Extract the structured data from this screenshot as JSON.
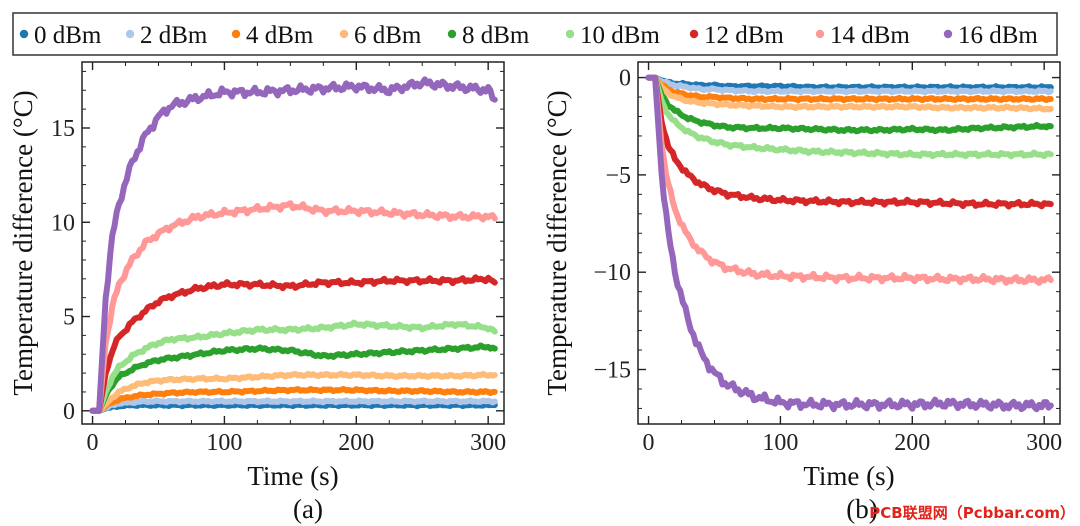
{
  "watermark": "PCB联盟网（Pcbbar.com）",
  "chart_data": [
    {
      "type": "line",
      "panel_label": "(a)",
      "title": "",
      "xlabel": "Time (s)",
      "ylabel": "Temperature difference (°C)",
      "xlim": [
        -8,
        312
      ],
      "ylim": [
        -0.7,
        18.5
      ],
      "xticks": [
        0,
        100,
        200,
        300
      ],
      "yticks": [
        0,
        5,
        10,
        15
      ],
      "x": [
        0,
        5,
        10,
        15,
        20,
        30,
        40,
        50,
        60,
        80,
        100,
        125,
        150,
        175,
        200,
        225,
        250,
        275,
        300,
        305
      ],
      "series": [
        {
          "name": "0 dBm",
          "color": "#1f77b4",
          "values": [
            0,
            0,
            0.12,
            0.2,
            0.25,
            0.3,
            0.3,
            0.3,
            0.3,
            0.3,
            0.3,
            0.3,
            0.3,
            0.3,
            0.3,
            0.3,
            0.3,
            0.3,
            0.3,
            0.3
          ]
        },
        {
          "name": "2 dBm",
          "color": "#aec7e8",
          "values": [
            0,
            0,
            0.15,
            0.3,
            0.4,
            0.45,
            0.5,
            0.5,
            0.5,
            0.5,
            0.5,
            0.5,
            0.5,
            0.5,
            0.5,
            0.5,
            0.5,
            0.5,
            0.5,
            0.5
          ]
        },
        {
          "name": "4 dBm",
          "color": "#ff7f0e",
          "values": [
            0,
            0,
            0.25,
            0.45,
            0.6,
            0.75,
            0.85,
            0.9,
            0.95,
            1.0,
            1.0,
            1.05,
            1.1,
            1.1,
            1.1,
            1.05,
            1.05,
            1.0,
            1.0,
            1.0
          ]
        },
        {
          "name": "6 dBm",
          "color": "#ffbb78",
          "values": [
            0,
            0,
            0.35,
            0.7,
            1.0,
            1.3,
            1.5,
            1.6,
            1.65,
            1.7,
            1.7,
            1.8,
            1.9,
            1.9,
            1.9,
            1.85,
            1.85,
            1.85,
            1.9,
            1.9
          ]
        },
        {
          "name": "8 dBm",
          "color": "#2ca02c",
          "values": [
            0,
            0,
            0.8,
            1.4,
            1.8,
            2.2,
            2.5,
            2.7,
            2.8,
            3.0,
            3.2,
            3.3,
            3.2,
            2.9,
            3.0,
            3.1,
            3.2,
            3.3,
            3.4,
            3.3
          ]
        },
        {
          "name": "10 dBm",
          "color": "#98df8a",
          "values": [
            0,
            0,
            1.0,
            1.8,
            2.3,
            2.9,
            3.3,
            3.6,
            3.8,
            3.9,
            4.1,
            4.3,
            4.3,
            4.4,
            4.6,
            4.5,
            4.4,
            4.6,
            4.4,
            4.2
          ]
        },
        {
          "name": "12 dBm",
          "color": "#d62728",
          "values": [
            0,
            0,
            2.0,
            3.2,
            3.9,
            4.7,
            5.3,
            5.8,
            6.1,
            6.5,
            6.7,
            6.7,
            6.6,
            6.8,
            6.8,
            6.9,
            6.9,
            6.9,
            7.0,
            6.8
          ]
        },
        {
          "name": "14 dBm",
          "color": "#ff9896",
          "values": [
            0,
            0,
            3.6,
            5.5,
            6.7,
            8.0,
            8.9,
            9.4,
            9.8,
            10.3,
            10.5,
            10.7,
            10.9,
            10.6,
            10.6,
            10.5,
            10.4,
            10.3,
            10.3,
            10.2
          ]
        },
        {
          "name": "16 dBm",
          "color": "#9467bd",
          "values": [
            0,
            0,
            6.0,
            9.2,
            11.0,
            13.2,
            14.6,
            15.6,
            16.2,
            16.6,
            16.9,
            16.9,
            17.0,
            17.1,
            17.2,
            17.0,
            17.4,
            17.2,
            17.0,
            16.5
          ]
        }
      ]
    },
    {
      "type": "line",
      "panel_label": "(b)",
      "title": "",
      "xlabel": "Time (s)",
      "ylabel": "Temperature difference (°C)",
      "xlim": [
        -8,
        312
      ],
      "ylim": [
        -17.8,
        0.8
      ],
      "xticks": [
        0,
        100,
        200,
        300
      ],
      "yticks": [
        0,
        -5,
        -10,
        -15
      ],
      "x": [
        0,
        5,
        10,
        15,
        20,
        30,
        40,
        50,
        60,
        80,
        100,
        125,
        150,
        175,
        200,
        225,
        250,
        275,
        300,
        305
      ],
      "series": [
        {
          "name": "0 dBm",
          "color": "#1f77b4",
          "values": [
            0,
            0,
            -0.15,
            -0.25,
            -0.3,
            -0.35,
            -0.4,
            -0.4,
            -0.45,
            -0.45,
            -0.45,
            -0.5,
            -0.5,
            -0.5,
            -0.5,
            -0.5,
            -0.5,
            -0.5,
            -0.5,
            -0.5
          ]
        },
        {
          "name": "2 dBm",
          "color": "#aec7e8",
          "values": [
            0,
            0,
            -0.2,
            -0.3,
            -0.4,
            -0.5,
            -0.6,
            -0.6,
            -0.65,
            -0.7,
            -0.7,
            -0.7,
            -0.7,
            -0.7,
            -0.7,
            -0.7,
            -0.7,
            -0.7,
            -0.7,
            -0.7
          ]
        },
        {
          "name": "4 dBm",
          "color": "#ff7f0e",
          "values": [
            0,
            0,
            -0.4,
            -0.6,
            -0.75,
            -0.9,
            -1.0,
            -1.0,
            -1.05,
            -1.1,
            -1.1,
            -1.1,
            -1.1,
            -1.1,
            -1.1,
            -1.1,
            -1.1,
            -1.1,
            -1.1,
            -1.1
          ]
        },
        {
          "name": "6 dBm",
          "color": "#ffbb78",
          "values": [
            0,
            0,
            -0.5,
            -0.8,
            -1.0,
            -1.2,
            -1.3,
            -1.35,
            -1.4,
            -1.45,
            -1.5,
            -1.5,
            -1.5,
            -1.5,
            -1.5,
            -1.55,
            -1.55,
            -1.55,
            -1.6,
            -1.6
          ]
        },
        {
          "name": "8 dBm",
          "color": "#2ca02c",
          "values": [
            0,
            0,
            -0.9,
            -1.4,
            -1.7,
            -2.1,
            -2.3,
            -2.45,
            -2.55,
            -2.6,
            -2.6,
            -2.65,
            -2.7,
            -2.7,
            -2.65,
            -2.7,
            -2.6,
            -2.55,
            -2.5,
            -2.5
          ]
        },
        {
          "name": "10 dBm",
          "color": "#98df8a",
          "values": [
            0,
            0,
            -1.2,
            -1.9,
            -2.3,
            -2.8,
            -3.1,
            -3.3,
            -3.45,
            -3.6,
            -3.7,
            -3.8,
            -3.85,
            -3.9,
            -3.95,
            -3.95,
            -3.95,
            -3.95,
            -3.95,
            -3.95
          ]
        },
        {
          "name": "12 dBm",
          "color": "#d62728",
          "values": [
            0,
            0,
            -2.3,
            -3.5,
            -4.2,
            -5.0,
            -5.5,
            -5.8,
            -6.0,
            -6.2,
            -6.3,
            -6.35,
            -6.4,
            -6.4,
            -6.4,
            -6.45,
            -6.5,
            -6.5,
            -6.5,
            -6.5
          ]
        },
        {
          "name": "14 dBm",
          "color": "#ff9896",
          "values": [
            0,
            0,
            -3.5,
            -5.5,
            -6.8,
            -8.2,
            -9.0,
            -9.5,
            -9.8,
            -10.1,
            -10.2,
            -10.25,
            -10.3,
            -10.3,
            -10.3,
            -10.35,
            -10.35,
            -10.4,
            -10.4,
            -10.4
          ]
        },
        {
          "name": "16 dBm",
          "color": "#9467bd",
          "values": [
            0,
            0,
            -5.0,
            -8.0,
            -10.0,
            -12.5,
            -14.2,
            -15.2,
            -15.8,
            -16.4,
            -16.7,
            -16.8,
            -16.8,
            -16.8,
            -16.8,
            -16.75,
            -16.8,
            -16.85,
            -16.85,
            -16.85
          ]
        }
      ]
    }
  ]
}
